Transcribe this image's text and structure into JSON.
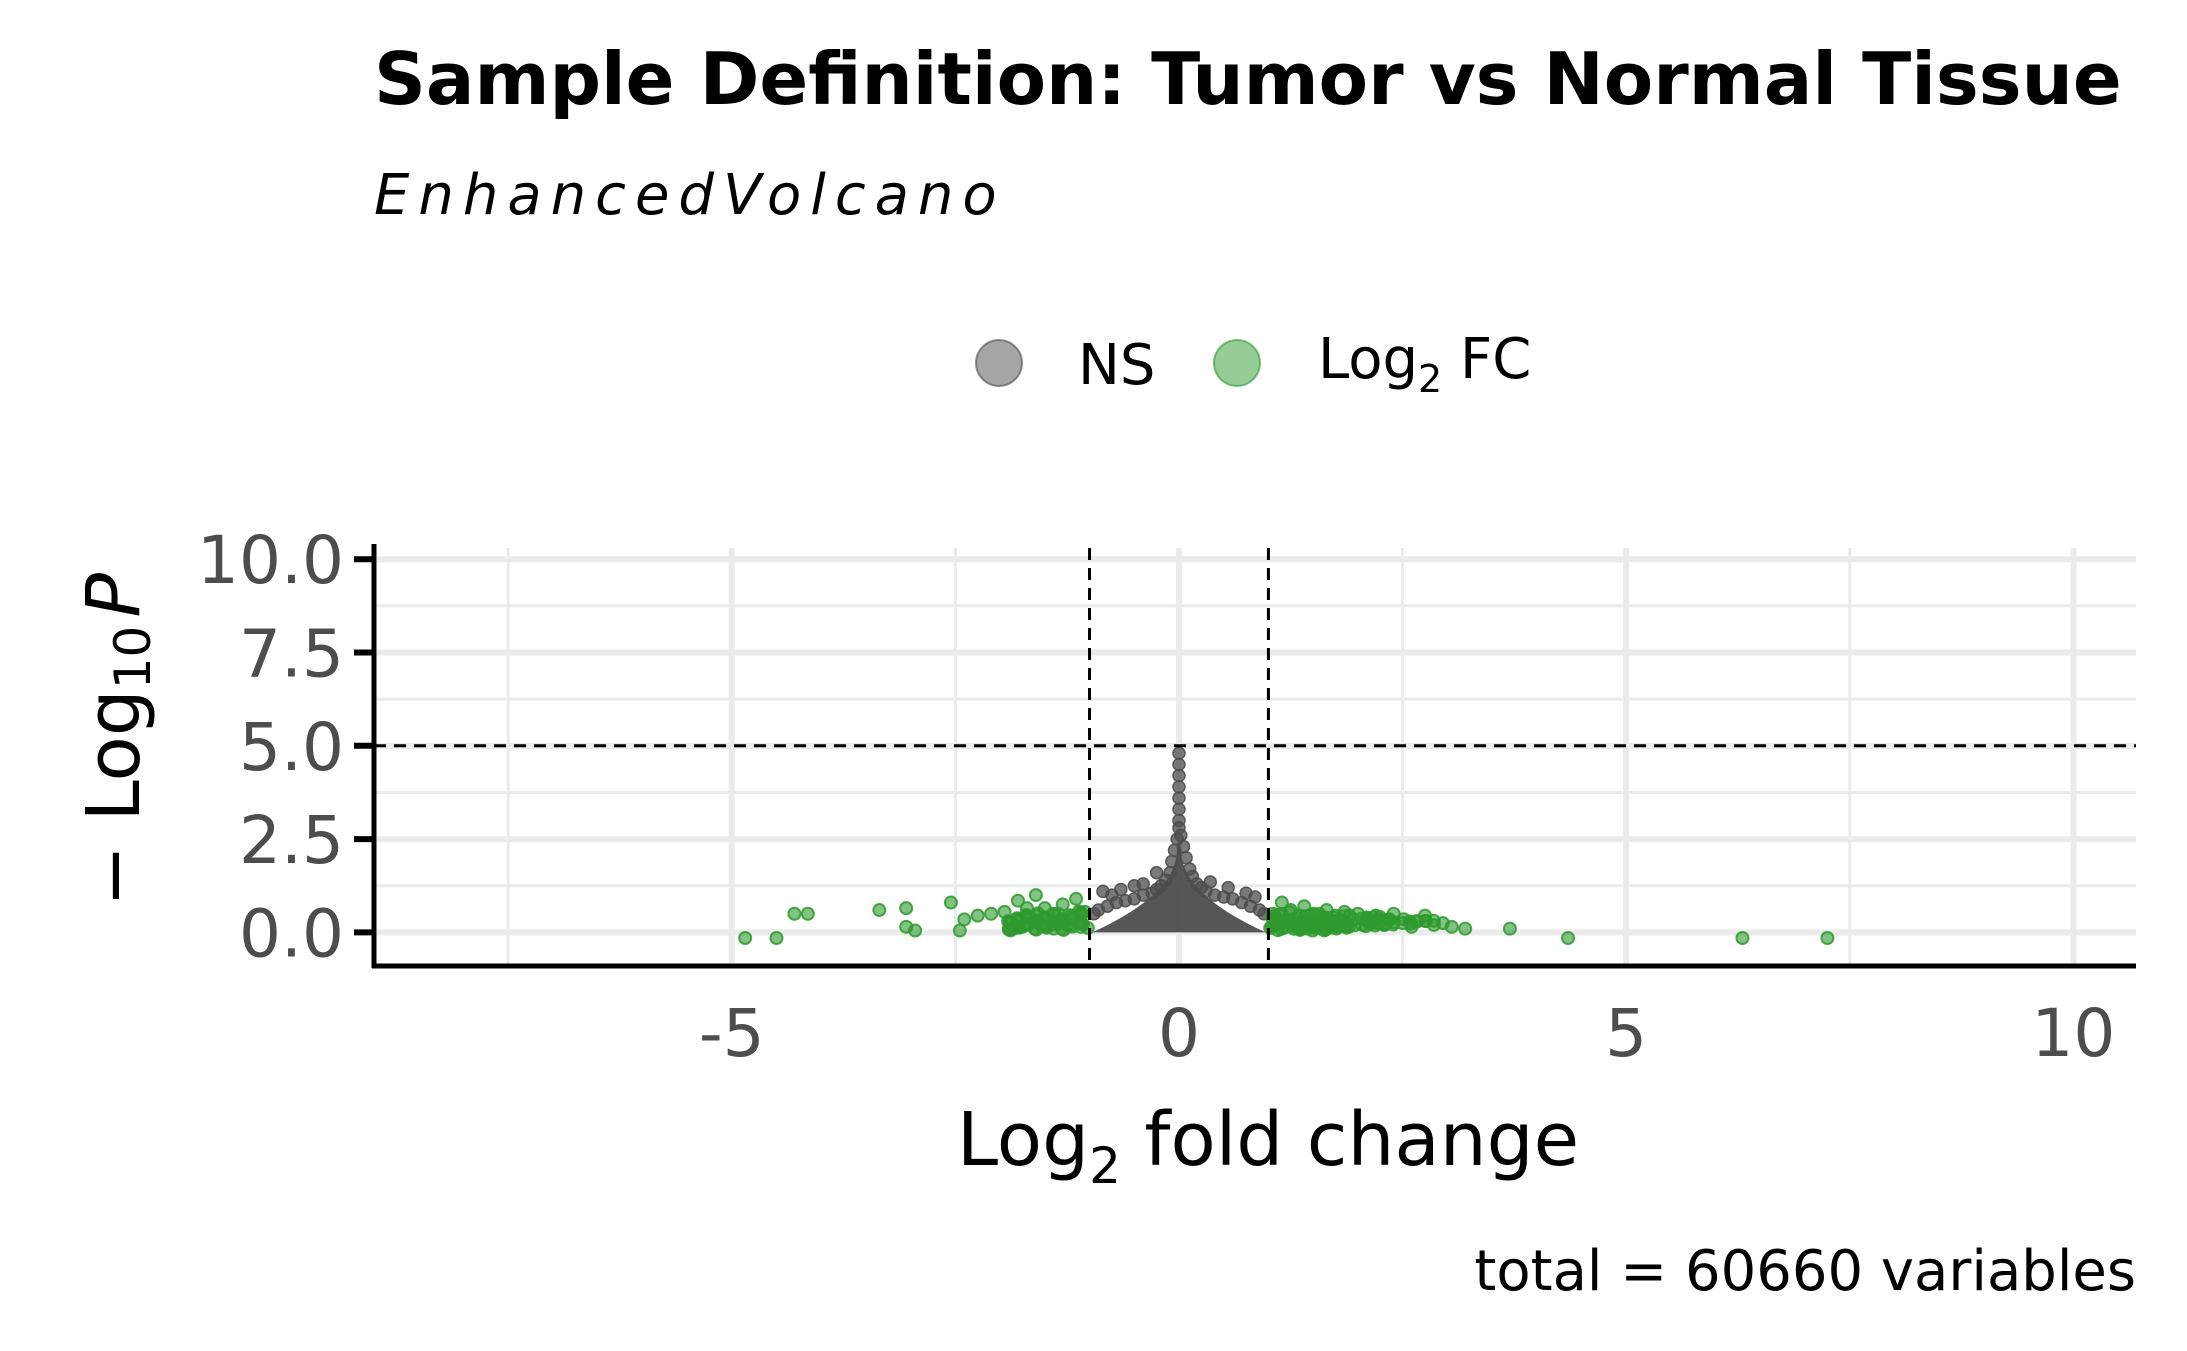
{
  "chart_data": {
    "type": "scatter",
    "title": "Sample Definition: Tumor vs Normal Tissue",
    "subtitle": "EnhancedVolcano",
    "caption": "total = 60660 variables",
    "xlabel": {
      "prefix": "Log",
      "sub": "2",
      "suffix": " fold change"
    },
    "ylabel": {
      "prefix": "− Log",
      "sub": "10",
      "italic": "P"
    },
    "xlim": [
      -9,
      10.7
    ],
    "ylim": [
      -0.9,
      10.3
    ],
    "x_ticks": [
      -5,
      0,
      5,
      10
    ],
    "x_tick_labels": [
      "-5",
      "0",
      "5",
      "10"
    ],
    "y_ticks": [
      0,
      2.5,
      5,
      7.5,
      10
    ],
    "y_tick_labels": [
      "0.0",
      "2.5",
      "5.0",
      "7.5",
      "10.0"
    ],
    "grid": true,
    "legend_position": "top",
    "fc_cutoff": 1,
    "p_cutoff": 5,
    "colors": {
      "ns": "#4d4d4d",
      "fc": "#2e9a2e",
      "grid": "#ebebeb",
      "axis": "#000000",
      "ticks_text": "#4d4d4d"
    },
    "series": [
      {
        "name": "NS",
        "legend_label": "NS",
        "points": [
          [
            0.0,
            4.8
          ],
          [
            0.0,
            4.5
          ],
          [
            0.0,
            4.2
          ],
          [
            0.0,
            3.9
          ],
          [
            0.0,
            3.6
          ],
          [
            0.0,
            3.3
          ],
          [
            0.0,
            3.0
          ],
          [
            0.0,
            2.8
          ],
          [
            0.02,
            2.6
          ],
          [
            -0.02,
            2.5
          ],
          [
            0.05,
            2.3
          ],
          [
            -0.05,
            2.2
          ],
          [
            0.08,
            2.0
          ],
          [
            -0.08,
            1.9
          ],
          [
            0.12,
            1.7
          ],
          [
            -0.1,
            1.6
          ],
          [
            0.15,
            1.5
          ],
          [
            -0.15,
            1.4
          ],
          [
            0.2,
            1.3
          ],
          [
            -0.2,
            1.25
          ],
          [
            0.25,
            1.2
          ],
          [
            -0.25,
            1.15
          ],
          [
            0.3,
            1.1
          ],
          [
            -0.3,
            1.05
          ],
          [
            0.4,
            1.0
          ],
          [
            -0.4,
            1.0
          ],
          [
            0.5,
            0.95
          ],
          [
            -0.5,
            0.9
          ],
          [
            0.6,
            0.9
          ],
          [
            -0.6,
            0.85
          ],
          [
            0.7,
            0.8
          ],
          [
            -0.7,
            0.8
          ],
          [
            0.8,
            0.7
          ],
          [
            -0.8,
            0.7
          ],
          [
            0.9,
            0.6
          ],
          [
            -0.9,
            0.6
          ],
          [
            -0.95,
            0.5
          ],
          [
            0.95,
            0.5
          ],
          [
            -0.85,
            1.1
          ],
          [
            -0.5,
            1.25
          ],
          [
            -0.4,
            1.3
          ],
          [
            -0.25,
            1.6
          ],
          [
            0.35,
            1.35
          ],
          [
            0.55,
            1.2
          ],
          [
            0.75,
            1.05
          ],
          [
            0.85,
            0.95
          ],
          [
            -0.65,
            1.15
          ],
          [
            -0.75,
            1.0
          ]
        ]
      },
      {
        "name": "Log2 FC",
        "legend_label": "Log",
        "legend_sub": "2",
        "legend_suffix": " FC",
        "points": [
          [
            -4.85,
            -0.15
          ],
          [
            -4.5,
            -0.15
          ],
          [
            -4.3,
            0.5
          ],
          [
            -4.15,
            0.5
          ],
          [
            -3.35,
            0.6
          ],
          [
            -3.05,
            0.65
          ],
          [
            -3.05,
            0.15
          ],
          [
            -2.95,
            0.05
          ],
          [
            -2.55,
            0.8
          ],
          [
            -2.45,
            0.05
          ],
          [
            -2.4,
            0.35
          ],
          [
            -2.25,
            0.45
          ],
          [
            -2.1,
            0.5
          ],
          [
            -1.95,
            0.55
          ],
          [
            -1.9,
            0.1
          ],
          [
            -1.85,
            0.1
          ],
          [
            -1.75,
            0.15
          ],
          [
            -1.8,
            0.85
          ],
          [
            -1.7,
            0.65
          ],
          [
            -1.6,
            0.45
          ],
          [
            -1.6,
            1.0
          ],
          [
            -1.55,
            0.2
          ],
          [
            -1.5,
            0.65
          ],
          [
            -1.45,
            0.3
          ],
          [
            -1.4,
            0.1
          ],
          [
            -1.35,
            0.5
          ],
          [
            -1.3,
            0.75
          ],
          [
            -1.25,
            0.2
          ],
          [
            -1.2,
            0.35
          ],
          [
            -1.15,
            0.9
          ],
          [
            -1.1,
            0.15
          ],
          [
            -1.05,
            0.55
          ],
          [
            1.05,
            0.5
          ],
          [
            1.1,
            0.2
          ],
          [
            1.15,
            0.8
          ],
          [
            1.2,
            0.35
          ],
          [
            1.25,
            0.6
          ],
          [
            1.3,
            0.15
          ],
          [
            1.35,
            0.45
          ],
          [
            1.4,
            0.7
          ],
          [
            1.45,
            0.25
          ],
          [
            1.5,
            0.5
          ],
          [
            1.55,
            0.15
          ],
          [
            1.6,
            0.4
          ],
          [
            1.65,
            0.6
          ],
          [
            1.7,
            0.2
          ],
          [
            1.75,
            0.45
          ],
          [
            1.8,
            0.3
          ],
          [
            1.85,
            0.55
          ],
          [
            1.9,
            0.15
          ],
          [
            1.95,
            0.35
          ],
          [
            2.0,
            0.5
          ],
          [
            2.05,
            0.2
          ],
          [
            2.1,
            0.4
          ],
          [
            2.15,
            0.25
          ],
          [
            2.2,
            0.45
          ],
          [
            2.3,
            0.2
          ],
          [
            2.35,
            0.35
          ],
          [
            2.4,
            0.5
          ],
          [
            2.5,
            0.25
          ],
          [
            2.6,
            0.15
          ],
          [
            2.65,
            0.3
          ],
          [
            2.75,
            0.45
          ],
          [
            2.85,
            0.2
          ],
          [
            2.95,
            0.25
          ],
          [
            3.05,
            0.15
          ],
          [
            3.2,
            0.1
          ],
          [
            3.7,
            0.1
          ],
          [
            4.35,
            -0.15
          ],
          [
            6.3,
            -0.15
          ],
          [
            7.25,
            -0.15
          ]
        ]
      }
    ]
  }
}
